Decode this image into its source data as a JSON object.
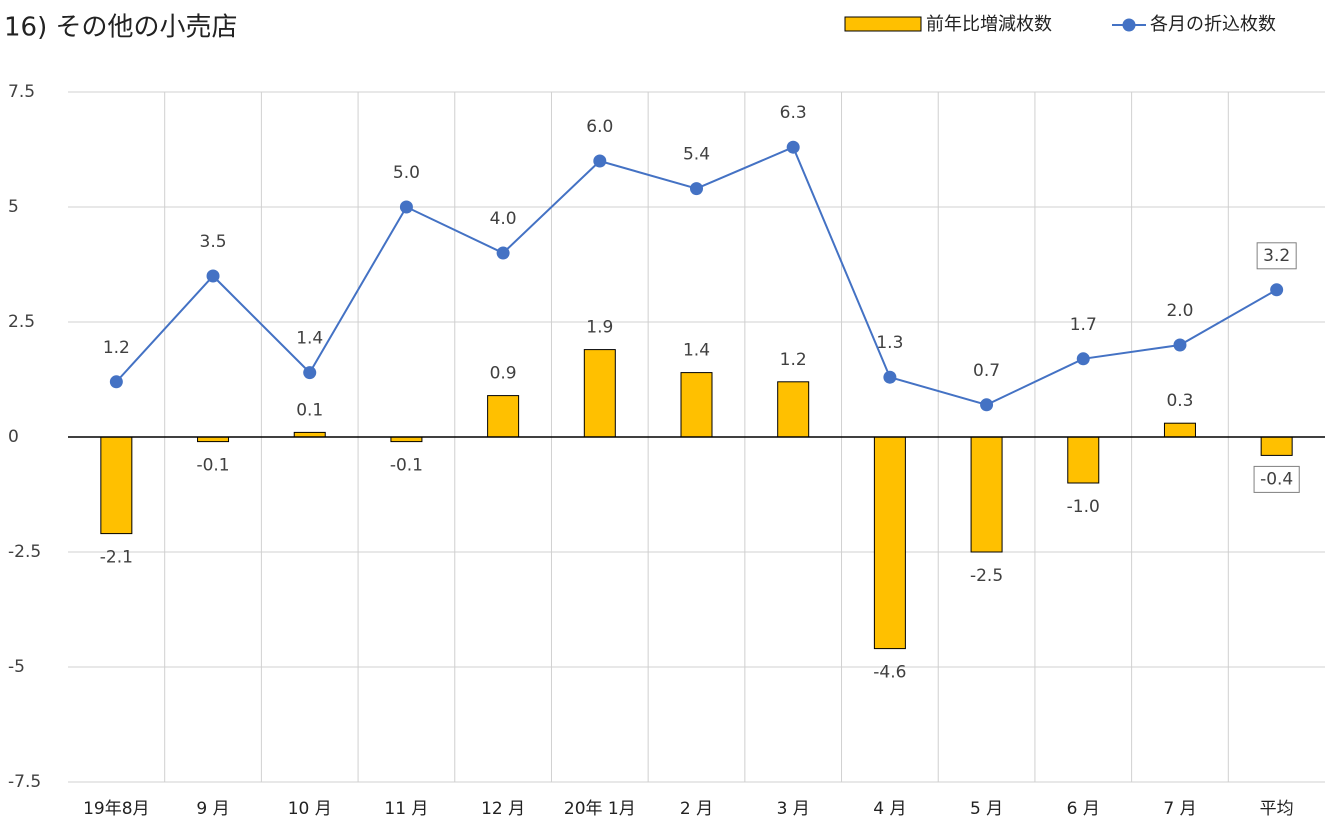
{
  "chart_data": {
    "type": "bar_line",
    "title": "16) その他の小売店",
    "categories": [
      "19年8月",
      "9 月",
      "10 月",
      "11 月",
      "12 月",
      "20年 1月",
      "2 月",
      "3 月",
      "4 月",
      "5 月",
      "6 月",
      "7 月",
      "平均"
    ],
    "series": [
      {
        "name": "前年比増減枚数",
        "type": "bar",
        "color": "#FFC000",
        "values": [
          -2.1,
          -0.1,
          0.1,
          -0.1,
          0.9,
          1.9,
          1.4,
          1.2,
          -4.6,
          -2.5,
          -1.0,
          0.3,
          -0.4
        ],
        "value_labels": [
          "-2.1",
          "-0.1",
          "0.1",
          "-0.1",
          "0.9",
          "1.9",
          "1.4",
          "1.2",
          "-4.6",
          "-2.5",
          "-1.0",
          "0.3",
          "-0.4"
        ]
      },
      {
        "name": "各月の折込枚数",
        "type": "line",
        "color": "#4472C4",
        "values": [
          1.2,
          3.5,
          1.4,
          5.0,
          4.0,
          6.0,
          5.4,
          6.3,
          1.3,
          0.7,
          1.7,
          2.0,
          3.2
        ],
        "value_labels": [
          "1.2",
          "3.5",
          "1.4",
          "5.0",
          "4.0",
          "6.0",
          "5.4",
          "6.3",
          "1.3",
          "0.7",
          "1.7",
          "2.0",
          "3.2"
        ]
      }
    ],
    "ylim": [
      -7.5,
      7.5
    ],
    "yticks": [
      7.5,
      5,
      2.5,
      0,
      -2.5,
      -5,
      -7.5
    ],
    "grid": true,
    "legend": "top-right"
  }
}
